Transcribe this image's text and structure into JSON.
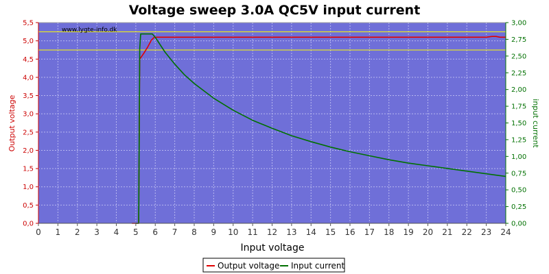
{
  "chart_data": {
    "type": "line",
    "title": "Voltage sweep 3.0A QC5V input current",
    "watermark": "www.lygte-info.dk",
    "xlabel": "Input voltage",
    "ylabel_left": "Output voltage",
    "ylabel_right": "input current",
    "xlim": [
      0,
      24
    ],
    "ylim_left": [
      0,
      5.5
    ],
    "ylim_right": [
      0,
      3.0
    ],
    "x_ticks": [
      "0",
      "1",
      "2",
      "3",
      "4",
      "5",
      "6",
      "7",
      "8",
      "9",
      "10",
      "11",
      "12",
      "13",
      "14",
      "15",
      "16",
      "17",
      "18",
      "19",
      "20",
      "21",
      "22",
      "23",
      "24"
    ],
    "y_left_ticks": [
      "0,0",
      "0,5",
      "1,0",
      "1,5",
      "2,0",
      "2,5",
      "3,0",
      "3,5",
      "4,0",
      "4,5",
      "5,0",
      "5,5"
    ],
    "y_right_ticks": [
      "0,00",
      "0,25",
      "0,50",
      "0,75",
      "1,00",
      "1,25",
      "1,50",
      "1,75",
      "2,00",
      "2,25",
      "2,50",
      "2,75",
      "3,00"
    ],
    "grid": true,
    "legend_position": "bottom-center",
    "reference_lines": {
      "axis": "left",
      "values": [
        5.25,
        4.75
      ],
      "color": "#ffff00"
    },
    "colors": {
      "plot_background": "#6f6fd8",
      "grid": "#b8b8f0",
      "left_axis": "#cc0000",
      "right_axis": "#007000"
    },
    "series": [
      {
        "name": "Output voltage",
        "axis": "left",
        "color": "#e00000",
        "points": [
          [
            4.8,
            0
          ],
          [
            5.1,
            0
          ],
          [
            5.15,
            0
          ],
          [
            5.2,
            4.5
          ],
          [
            5.4,
            4.65
          ],
          [
            5.6,
            4.82
          ],
          [
            5.8,
            5.02
          ],
          [
            5.95,
            5.1
          ],
          [
            6.2,
            5.1
          ],
          [
            8,
            5.1
          ],
          [
            12,
            5.1
          ],
          [
            16,
            5.1
          ],
          [
            20,
            5.1
          ],
          [
            23.0,
            5.1
          ],
          [
            23.3,
            5.12
          ],
          [
            23.5,
            5.12
          ],
          [
            23.7,
            5.1
          ],
          [
            24,
            5.1
          ]
        ]
      },
      {
        "name": "Input current",
        "axis": "right",
        "color": "#007000",
        "points": [
          [
            5.0,
            0
          ],
          [
            5.15,
            0
          ],
          [
            5.2,
            2.61
          ],
          [
            5.25,
            2.83
          ],
          [
            5.85,
            2.83
          ],
          [
            6.0,
            2.78
          ],
          [
            6.5,
            2.56
          ],
          [
            7,
            2.38
          ],
          [
            7.5,
            2.22
          ],
          [
            8,
            2.09
          ],
          [
            9,
            1.87
          ],
          [
            10,
            1.69
          ],
          [
            11,
            1.54
          ],
          [
            12,
            1.42
          ],
          [
            13,
            1.31
          ],
          [
            14,
            1.22
          ],
          [
            15,
            1.14
          ],
          [
            16,
            1.07
          ],
          [
            17,
            1.01
          ],
          [
            18,
            0.95
          ],
          [
            19,
            0.9
          ],
          [
            20,
            0.86
          ],
          [
            21,
            0.82
          ],
          [
            22,
            0.78
          ],
          [
            23,
            0.74
          ],
          [
            24,
            0.7
          ]
        ]
      }
    ]
  }
}
